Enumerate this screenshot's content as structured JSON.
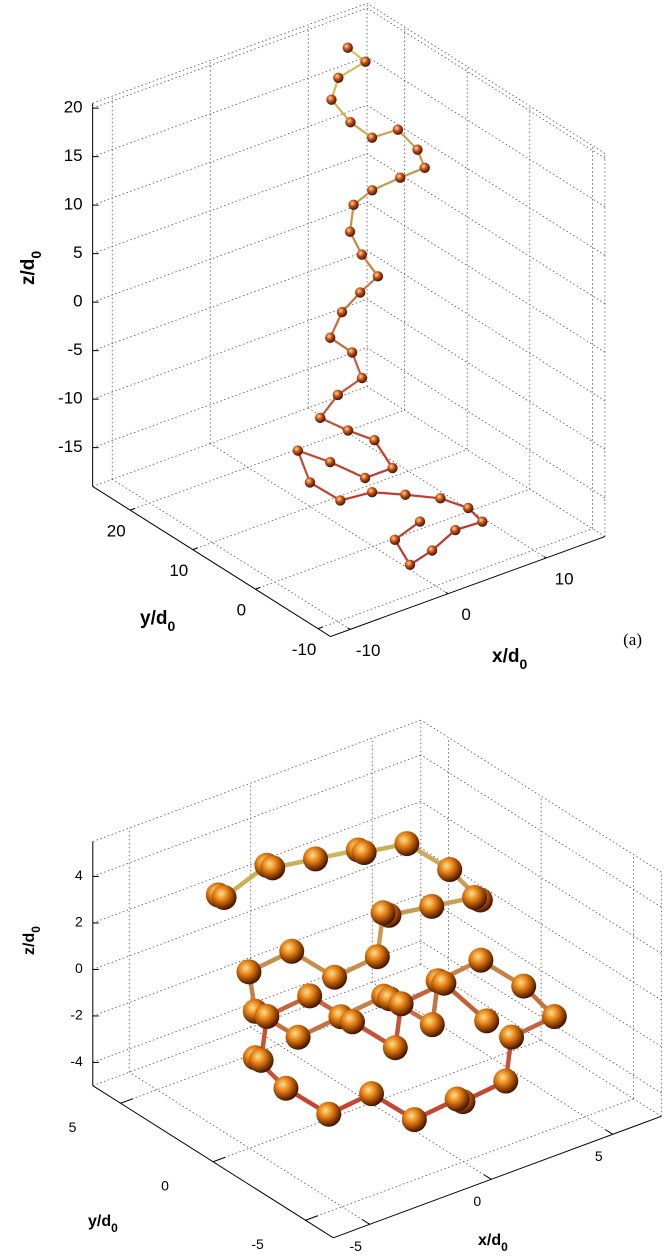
{
  "chart_data": [
    {
      "type": "scatter3d",
      "xlabel": [
        "x/d",
        "0"
      ],
      "ylabel": [
        "y/d",
        "0"
      ],
      "zlabel": [
        "z/d",
        "0"
      ],
      "annotation": "(a)",
      "xlim": [
        -12,
        16
      ],
      "ylim": [
        -12,
        26
      ],
      "zlim": [
        -19,
        20.5
      ],
      "xticks": [
        -10,
        0,
        10
      ],
      "yticks": [
        -10,
        0,
        10,
        20
      ],
      "zticks": [
        -15,
        -10,
        -5,
        0,
        5,
        10,
        15,
        20
      ],
      "grid": true,
      "series": [
        {
          "color": "#c8501e",
          "x": [
            10.2,
            12,
            8.6,
            7.9,
            9.2,
            11.4,
            13.4,
            15.4,
            15.5,
            13,
            9.5,
            7.6,
            6.6,
            7.8,
            8.8,
            7,
            4.5,
            3.3,
            4.9,
            5.9,
            2.8,
            1,
            3.2,
            5.9,
            7.1,
            4.3,
            0.1,
            -3.2,
            -2.6,
            0.5,
            3.1,
            3.3,
            5.6,
            7.8,
            8.6,
            5.2,
            2.2,
            -0.7,
            -1.6,
            1.6
          ],
          "y": [
            20,
            20,
            19,
            19,
            18,
            18,
            17,
            17,
            16,
            16,
            15,
            15,
            14,
            14,
            13,
            13,
            12,
            12,
            11,
            11,
            10,
            10,
            9,
            9,
            8,
            8,
            7,
            7,
            6,
            6,
            5,
            0,
            -2,
            -3,
            -4,
            -5,
            -6,
            -7,
            -6,
            -5
          ],
          "z": [
            20.5,
            18.4,
            18.4,
            16.4,
            14,
            11.6,
            12.1,
            9.3,
            7.8,
            7.7,
            8.1,
            7.3,
            5.3,
            2.5,
            0.3,
            -0.7,
            -1.4,
            -3.6,
            -5.3,
            -8.3,
            -8.5,
            -10.2,
            -11.9,
            -13.9,
            -16.8,
            -16.8,
            -13.2,
            -10.8,
            -13.9,
            -16.9,
            -16.6,
            -14.9,
            -15.3,
            -16.7,
            -18,
            -17.2,
            -17.8,
            -17.8,
            -15.3,
            -15
          ]
        }
      ]
    },
    {
      "type": "scatter3d",
      "xlabel": [
        "x/d",
        "0"
      ],
      "ylabel": [
        "y/d",
        "0"
      ],
      "zlabel": [
        "z/d",
        "0"
      ],
      "xlim": [
        -6.5,
        7
      ],
      "ylim": [
        -6.5,
        6.5
      ],
      "zlim": [
        -5,
        5.5
      ],
      "xticks": [
        -5,
        0,
        5
      ],
      "yticks": [
        -5,
        0,
        5
      ],
      "zticks": [
        -4,
        -2,
        0,
        2,
        4
      ],
      "grid": true,
      "series": [
        {
          "color": "#e07a10",
          "x": [
            -4,
            -3,
            -2,
            -1,
            0,
            1,
            2,
            3,
            4,
            4.5,
            3.5,
            2.5,
            1.5,
            0.5,
            -0.5,
            -1.5,
            -2.5,
            -3.5,
            -4,
            -3,
            -2,
            -1,
            0,
            1,
            2,
            3,
            4,
            4.5,
            3.5,
            2.5,
            1.5,
            0.5,
            -0.5,
            -1.5,
            -2.5,
            -3.5,
            -4,
            -3,
            -2,
            -1,
            0,
            1,
            2,
            3,
            4
          ],
          "y": [
            3,
            4,
            3,
            4,
            3,
            2,
            3,
            2,
            1,
            0,
            -1,
            0,
            1,
            0,
            -1,
            0,
            1,
            2,
            1,
            0,
            -1,
            -2,
            -1,
            -2,
            -1,
            -2,
            -3,
            -4,
            -3,
            -4,
            -3,
            -4,
            -3,
            -2,
            -1,
            0,
            1,
            2,
            3,
            2,
            1,
            0,
            1,
            0,
            -1
          ],
          "z": [
            4,
            3,
            4.5,
            3.5,
            4,
            4.5,
            3.5,
            4,
            3,
            2,
            3,
            2.5,
            2,
            3,
            2,
            1,
            2,
            1,
            0,
            -1,
            0,
            1,
            0,
            -1,
            0,
            1,
            0,
            -1,
            -2,
            -3,
            -4,
            -3,
            -4,
            -3,
            -4,
            -3,
            -2,
            -3,
            -2,
            -1,
            -2,
            -3,
            -2,
            -1,
            -2.5
          ]
        }
      ]
    }
  ]
}
